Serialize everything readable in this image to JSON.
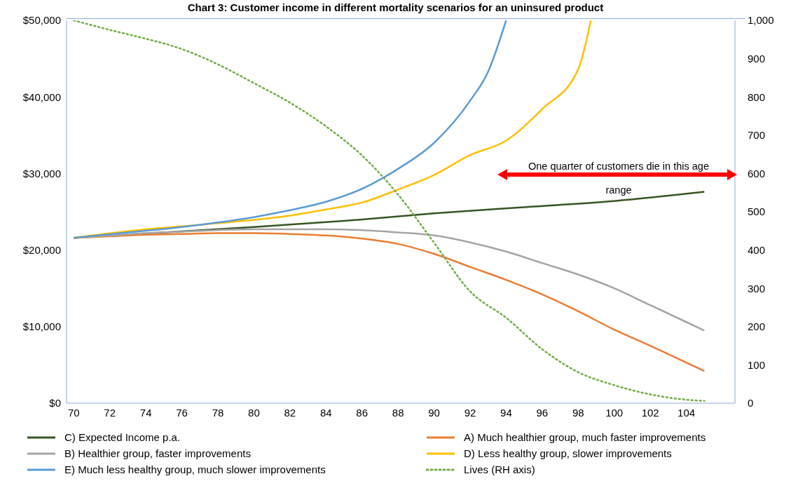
{
  "chart_data": {
    "type": "line",
    "title": "Chart 3: Customer income in different mortality scenarios for an uninsured product",
    "xlim": [
      69.6,
      106.7
    ],
    "xticks": [
      70,
      72,
      74,
      76,
      78,
      80,
      82,
      84,
      86,
      88,
      90,
      92,
      94,
      96,
      98,
      100,
      102,
      104
    ],
    "ylim": [
      0,
      50000
    ],
    "yticks": [
      {
        "value": 0,
        "label": "$0"
      },
      {
        "value": 10000,
        "label": "$10,000"
      },
      {
        "value": 20000,
        "label": "$20,000"
      },
      {
        "value": 30000,
        "label": "$30,000"
      },
      {
        "value": 40000,
        "label": "$40,000"
      },
      {
        "value": 50000,
        "label": "$50,000"
      }
    ],
    "y2lim": [
      0,
      1000
    ],
    "y2ticks": [
      0,
      100,
      200,
      300,
      400,
      500,
      600,
      700,
      800,
      900,
      {
        "value": 1000,
        "label": "1,000"
      }
    ],
    "legend": "bottom",
    "marker": "none",
    "line_style": "solid",
    "annotations": [
      "One quarter of customers die in this age range"
    ],
    "series": [
      {
        "name": "C) Expected Income p.a.",
        "color": "#375623",
        "x": [
          70,
          75,
          80,
          85,
          90,
          95,
          100,
          105
        ],
        "values": [
          21600,
          22300,
          23000,
          23800,
          24800,
          25600,
          26400,
          27600
        ]
      },
      {
        "name": "A) Much healthier group, much faster improvements",
        "color": "#ed7d31",
        "x": [
          70,
          72,
          74,
          76,
          78,
          80,
          82,
          84,
          86,
          88,
          90,
          92,
          94,
          96,
          98,
          100,
          102,
          104,
          105
        ],
        "values": [
          21600,
          21800,
          22000,
          22100,
          22200,
          22200,
          22100,
          21900,
          21500,
          20800,
          19500,
          17800,
          16100,
          14200,
          12000,
          9600,
          7500,
          5300,
          4200
        ]
      },
      {
        "name": "B) Healthier group, faster improvements",
        "color": "#a5a5a5",
        "x": [
          70,
          72,
          74,
          76,
          78,
          80,
          82,
          84,
          86,
          88,
          90,
          92,
          94,
          96,
          98,
          100,
          102,
          104,
          105
        ],
        "values": [
          21600,
          21900,
          22200,
          22400,
          22600,
          22700,
          22700,
          22700,
          22600,
          22300,
          21900,
          21000,
          19800,
          18300,
          16800,
          15000,
          12800,
          10600,
          9500
        ]
      },
      {
        "name": "D) Less healthy group, slower improvements",
        "color": "#ffc000",
        "x": [
          70,
          74,
          78,
          82,
          84,
          86,
          88,
          90,
          92,
          94,
          96,
          98,
          98.7
        ],
        "values": [
          21600,
          22700,
          23500,
          24500,
          25300,
          26200,
          27900,
          29800,
          32400,
          34300,
          38400,
          43600,
          50000
        ]
      },
      {
        "name": "E) Much less healthy group, much slower improvements",
        "color": "#5b9bd5",
        "x": [
          70,
          73,
          76,
          78,
          80,
          82,
          84,
          86,
          88,
          90,
          92,
          93,
          94
        ],
        "values": [
          21600,
          22300,
          23000,
          23600,
          24300,
          25200,
          26300,
          28000,
          30600,
          34000,
          39500,
          43300,
          50000
        ]
      },
      {
        "name": "Lives (RH axis)",
        "color": "#70ad47",
        "axis": "y2",
        "line_style": "dotted",
        "x": [
          70,
          72,
          74,
          76,
          78,
          80,
          82,
          84,
          86,
          88,
          90,
          92,
          94,
          96,
          98,
          100,
          102,
          104,
          105
        ],
        "values": [
          1000,
          975,
          952,
          925,
          885,
          836,
          785,
          723,
          647,
          545,
          419,
          292,
          223,
          141,
          81,
          47,
          23,
          9,
          6
        ]
      }
    ]
  }
}
